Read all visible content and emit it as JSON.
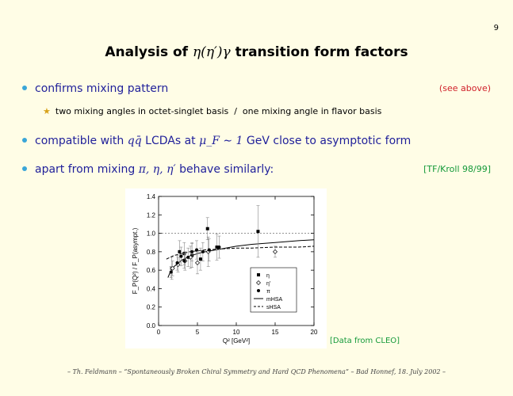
{
  "page_number": "9",
  "title": {
    "text_before": "Analysis of ",
    "math": "η(η′)γ",
    "text_after": " transition form factors"
  },
  "bullets": [
    {
      "text": "confirms mixing pattern",
      "tag": "(see above)"
    },
    {
      "text_before": "compatible with ",
      "math1": "qq̄",
      "text_mid": " LCDAs at ",
      "math2": "μ_F ∼ 1",
      "text_after": " GeV close to asymptotic form"
    },
    {
      "text_before": "apart from mixing ",
      "math": "π, η, η′",
      "text_after": " behave similarly:",
      "tag": "[TF/Kroll 98/99]"
    }
  ],
  "sub_bullet": "two mixing angles in octet-singlet basis  /  one mixing angle in flavor basis",
  "credit": "[Data from CLEO]",
  "footer": "– Th. Feldmann – “Spontaneously Broken Chiral Symmetry and Hard QCD Phenomena” – Bad Honnef, 18. July 2002 –",
  "chart_data": {
    "type": "scatter",
    "xlabel": "Q² [GeV²]",
    "ylabel": "F_P(Q²) / F_P(asympt.)",
    "xlim": [
      0,
      20
    ],
    "ylim": [
      0,
      1.4
    ],
    "xticks": [
      "0",
      "5",
      "10",
      "15",
      "20"
    ],
    "yticks": [
      "0.0",
      "0.2",
      "0.4",
      "0.6",
      "0.8",
      "1.0",
      "1.2",
      "1.4"
    ],
    "reference_line": 1.0,
    "legend": [
      "η",
      "η′",
      "π",
      "mHSA",
      "sHSA"
    ],
    "series": [
      {
        "name": "η",
        "marker": "filled-square",
        "x": [
          1.7,
          2.7,
          3.3,
          4.3,
          5.4,
          6.3,
          7.5,
          12.8
        ],
        "y": [
          0.62,
          0.8,
          0.78,
          0.76,
          0.72,
          1.05,
          0.85,
          1.02
        ],
        "err": [
          0.12,
          0.12,
          0.12,
          0.13,
          0.12,
          0.12,
          0.14,
          0.28
        ]
      },
      {
        "name": "η′",
        "marker": "open-diamond",
        "x": [
          1.8,
          2.5,
          3.4,
          4.1,
          5.0,
          6.4,
          15.0
        ],
        "y": [
          0.62,
          0.66,
          0.7,
          0.74,
          0.68,
          0.8,
          0.8
        ],
        "err": [
          0.08,
          0.08,
          0.1,
          0.12,
          0.12,
          0.16,
          0.06
        ]
      },
      {
        "name": "π",
        "marker": "filled-circle",
        "x": [
          1.6,
          2.4,
          2.9,
          3.3,
          3.8,
          4.3,
          4.9,
          5.7,
          6.5,
          7.8
        ],
        "y": [
          0.58,
          0.68,
          0.75,
          0.7,
          0.74,
          0.8,
          0.82,
          0.8,
          0.82,
          0.85
        ],
        "err": [
          0.06,
          0.08,
          0.1,
          0.08,
          0.1,
          0.1,
          0.1,
          0.1,
          0.12,
          0.12
        ]
      },
      {
        "name": "mHSA",
        "line": "solid",
        "x": [
          1.2,
          1.5,
          2,
          3,
          4,
          5,
          6,
          8,
          10,
          12,
          15,
          18,
          20
        ],
        "y": [
          0.52,
          0.58,
          0.64,
          0.71,
          0.75,
          0.78,
          0.8,
          0.83,
          0.86,
          0.88,
          0.9,
          0.92,
          0.93
        ]
      },
      {
        "name": "sHSA",
        "line": "dashed",
        "x": [
          1.0,
          1.5,
          2,
          3,
          4,
          5,
          6,
          8,
          10,
          12,
          15,
          18,
          20
        ],
        "y": [
          0.72,
          0.74,
          0.76,
          0.78,
          0.8,
          0.81,
          0.82,
          0.83,
          0.84,
          0.84,
          0.85,
          0.85,
          0.86
        ]
      }
    ]
  }
}
